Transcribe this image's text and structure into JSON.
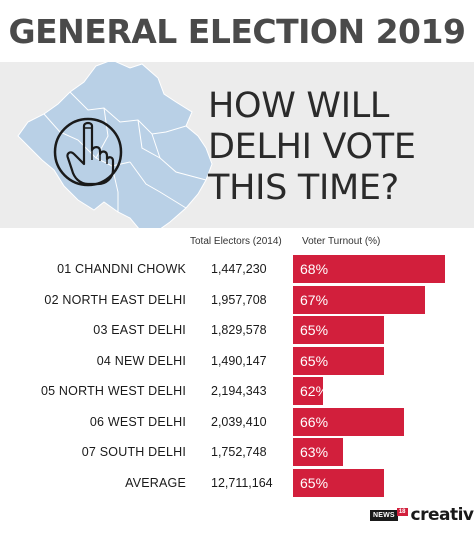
{
  "header": {
    "title": "GENERAL ELECTION 2019"
  },
  "headline": {
    "lines": [
      "HOW WILL",
      "DELHI VOTE",
      "THIS TIME?"
    ]
  },
  "chart_data": {
    "type": "bar",
    "columns": {
      "electors": "Total Electors (2014)",
      "turnout": "Voter Turnout (%)"
    },
    "categories": [
      "01 CHANDNI CHOWK",
      "02 NORTH EAST DELHI",
      "03 EAST DELHI",
      "04 NEW DELHI",
      "05 NORTH WEST DELHI",
      "06 WEST DELHI",
      "07 SOUTH DELHI",
      "AVERAGE"
    ],
    "electors": [
      "1,447,230",
      "1,957,708",
      "1,829,578",
      "1,490,147",
      "2,194,343",
      "2,039,410",
      "1,752,748",
      "12,711,164"
    ],
    "series": [
      {
        "name": "Voter Turnout (%)",
        "values": [
          68,
          67,
          65,
          65,
          62,
          66,
          63,
          65
        ]
      }
    ],
    "bar_colors": [
      "#d21f3c"
    ],
    "value_suffix": "%",
    "orientation": "horizontal"
  },
  "brand": {
    "news": "NEWS",
    "num": "18",
    "word": "creative"
  },
  "icons": {
    "map": "delhi-map-icon",
    "vote": "voting-finger-icon"
  }
}
